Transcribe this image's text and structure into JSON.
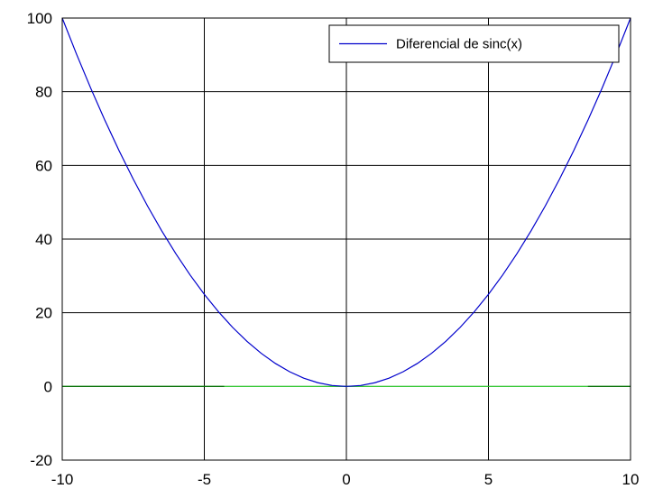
{
  "chart_data": {
    "type": "line",
    "xlim": [
      -10,
      10
    ],
    "ylim": [
      -20,
      100
    ],
    "xticks": [
      -10,
      -5,
      0,
      5,
      10
    ],
    "xtick_labels": [
      "-10",
      "-5",
      "0",
      "5",
      "10"
    ],
    "yticks": [
      -20,
      0,
      20,
      40,
      60,
      80,
      100
    ],
    "ytick_labels": [
      "-20",
      "0",
      "20",
      "40",
      "60",
      "80",
      "100"
    ],
    "grid": true,
    "legend_position": "top-right",
    "series": [
      {
        "name": "Diferencial de sinc(x)",
        "color": "#0000cc",
        "x": [
          -10,
          -9.5,
          -9,
          -8.5,
          -8,
          -7.5,
          -7,
          -6.5,
          -6,
          -5.5,
          -5,
          -4.5,
          -4,
          -3.5,
          -3,
          -2.5,
          -2,
          -1.5,
          -1,
          -0.5,
          0,
          0.5,
          1,
          1.5,
          2,
          2.5,
          3,
          3.5,
          4,
          4.5,
          5,
          5.5,
          6,
          6.5,
          7,
          7.5,
          8,
          8.5,
          9,
          9.5,
          10
        ],
        "y": [
          100,
          90.25,
          81,
          72.25,
          64,
          56.25,
          49,
          42.25,
          36,
          30.25,
          25,
          20.25,
          16,
          12.25,
          9,
          6.25,
          4,
          2.25,
          1,
          0.25,
          0,
          0.25,
          1,
          2.25,
          4,
          6.25,
          9,
          12.25,
          16,
          20.25,
          25,
          30.25,
          36,
          42.25,
          49,
          56.25,
          64,
          72.25,
          81,
          90.25,
          100
        ]
      },
      {
        "color": "#33dd33",
        "x": [
          -10,
          10
        ],
        "y": [
          0,
          0
        ]
      },
      {
        "color": "#006600",
        "x": [
          -10,
          -4.3
        ],
        "y": [
          0,
          0
        ]
      },
      {
        "color": "#006600",
        "x": [
          8.5,
          10
        ],
        "y": [
          0,
          0
        ]
      }
    ]
  }
}
